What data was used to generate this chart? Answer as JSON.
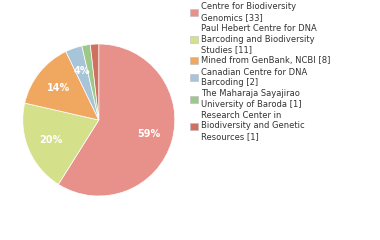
{
  "labels": [
    "Centre for Biodiversity\nGenomics [33]",
    "Paul Hebert Centre for DNA\nBarcoding and Biodiversity\nStudies [11]",
    "Mined from GenBank, NCBI [8]",
    "Canadian Centre for DNA\nBarcoding [2]",
    "The Maharaja Sayajirao\nUniversity of Baroda [1]",
    "Research Center in\nBiodiversity and Genetic\nResources [1]"
  ],
  "values": [
    33,
    11,
    8,
    2,
    1,
    1
  ],
  "colors": [
    "#e8908a",
    "#d4e08a",
    "#f0a860",
    "#a8c4d8",
    "#9dc88a",
    "#d07060"
  ],
  "background_color": "#ffffff",
  "text_color": "#333333",
  "fontsize": 7.0
}
